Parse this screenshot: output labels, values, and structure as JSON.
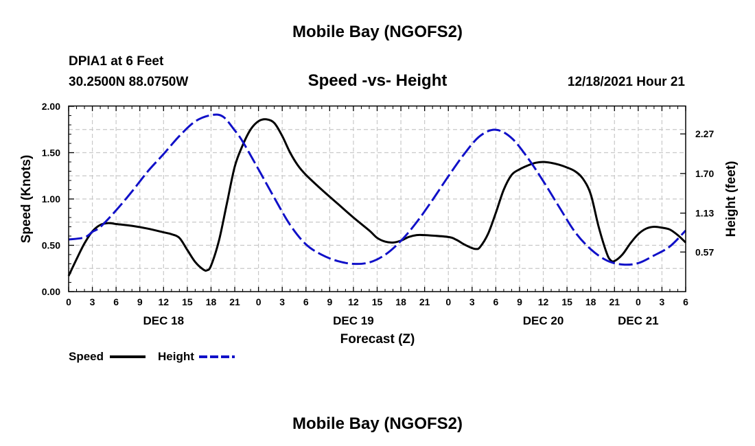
{
  "chart_data": {
    "type": "line",
    "title": "Mobile Bay (NGOFS2)",
    "repeated_title": "Mobile Bay (NGOFS2)",
    "station": "DPIA1 at 6 Feet",
    "coordinates": "30.2500N  88.0750W",
    "subtitle": "Speed -vs- Height",
    "timestamp": "12/18/2021 Hour 21",
    "xlabel": "Forecast (Z)",
    "ylabel_left": "Speed (Knots)",
    "ylabel_right": "Height (feet)",
    "x_unit": "hours from DEC 18 00Z",
    "xlim": [
      0,
      78
    ],
    "ylim_left": [
      0,
      2
    ],
    "ylim_right": [
      0.0,
      2.6667
    ],
    "grid": true,
    "x_tick_values": [
      0,
      3,
      6,
      9,
      12,
      15,
      18,
      21,
      24,
      27,
      30,
      33,
      36,
      39,
      42,
      45,
      48,
      51,
      54,
      57,
      60,
      63,
      66,
      69,
      72,
      75,
      78
    ],
    "x_tick_labels": [
      "0",
      "3",
      "6",
      "9",
      "12",
      "15",
      "18",
      "21",
      "0",
      "3",
      "6",
      "9",
      "12",
      "15",
      "18",
      "21",
      "0",
      "3",
      "6",
      "9",
      "12",
      "15",
      "18",
      "21",
      "0",
      "3",
      "6"
    ],
    "day_labels": [
      {
        "label": "DEC 18",
        "x": 12
      },
      {
        "label": "DEC 19",
        "x": 36
      },
      {
        "label": "DEC 20",
        "x": 60
      },
      {
        "label": "DEC 21",
        "x": 72
      }
    ],
    "y_left_ticks": [
      {
        "value": 0.0,
        "label": "0.00"
      },
      {
        "value": 0.5,
        "label": "0.50"
      },
      {
        "value": 1.0,
        "label": "1.00"
      },
      {
        "value": 1.5,
        "label": "1.50"
      },
      {
        "value": 2.0,
        "label": "2.00"
      }
    ],
    "y_right_ticks": [
      {
        "value": 0.57,
        "label": "0.57"
      },
      {
        "value": 1.13,
        "label": "1.13"
      },
      {
        "value": 1.7,
        "label": "1.70"
      },
      {
        "value": 2.27,
        "label": "2.27"
      }
    ],
    "series": [
      {
        "name": "Speed",
        "axis": "left",
        "color": "#000000",
        "style": "solid",
        "points": [
          [
            0,
            0.17
          ],
          [
            1,
            0.35
          ],
          [
            2,
            0.52
          ],
          [
            3,
            0.65
          ],
          [
            4,
            0.72
          ],
          [
            5,
            0.74
          ],
          [
            6,
            0.73
          ],
          [
            8,
            0.71
          ],
          [
            10,
            0.68
          ],
          [
            12,
            0.64
          ],
          [
            13,
            0.62
          ],
          [
            14,
            0.58
          ],
          [
            15,
            0.45
          ],
          [
            16,
            0.32
          ],
          [
            17,
            0.24
          ],
          [
            17.5,
            0.23
          ],
          [
            18,
            0.28
          ],
          [
            19,
            0.55
          ],
          [
            20,
            0.95
          ],
          [
            21,
            1.35
          ],
          [
            22,
            1.58
          ],
          [
            23,
            1.75
          ],
          [
            24,
            1.84
          ],
          [
            25,
            1.86
          ],
          [
            26,
            1.82
          ],
          [
            27,
            1.68
          ],
          [
            28,
            1.5
          ],
          [
            29,
            1.36
          ],
          [
            30,
            1.26
          ],
          [
            32,
            1.1
          ],
          [
            34,
            0.95
          ],
          [
            36,
            0.8
          ],
          [
            38,
            0.66
          ],
          [
            39,
            0.58
          ],
          [
            40,
            0.54
          ],
          [
            41,
            0.53
          ],
          [
            42,
            0.55
          ],
          [
            43,
            0.59
          ],
          [
            44,
            0.61
          ],
          [
            45,
            0.61
          ],
          [
            48,
            0.59
          ],
          [
            49,
            0.56
          ],
          [
            50,
            0.51
          ],
          [
            51,
            0.47
          ],
          [
            51.5,
            0.46
          ],
          [
            52,
            0.48
          ],
          [
            53,
            0.62
          ],
          [
            54,
            0.85
          ],
          [
            55,
            1.1
          ],
          [
            56,
            1.26
          ],
          [
            57,
            1.32
          ],
          [
            58,
            1.36
          ],
          [
            59,
            1.39
          ],
          [
            60,
            1.4
          ],
          [
            61,
            1.39
          ],
          [
            62,
            1.37
          ],
          [
            63,
            1.34
          ],
          [
            64,
            1.3
          ],
          [
            65,
            1.22
          ],
          [
            66,
            1.05
          ],
          [
            67,
            0.7
          ],
          [
            68,
            0.42
          ],
          [
            68.5,
            0.34
          ],
          [
            69,
            0.33
          ],
          [
            70,
            0.4
          ],
          [
            71,
            0.52
          ],
          [
            72,
            0.62
          ],
          [
            73,
            0.68
          ],
          [
            74,
            0.7
          ],
          [
            75,
            0.69
          ],
          [
            76,
            0.67
          ],
          [
            77,
            0.61
          ],
          [
            78,
            0.53
          ]
        ]
      },
      {
        "name": "Height",
        "axis": "right",
        "color": "#1010c8",
        "style": "dashed",
        "points": [
          [
            0,
            0.75
          ],
          [
            2,
            0.78
          ],
          [
            3,
            0.86
          ],
          [
            4,
            0.93
          ],
          [
            6,
            1.17
          ],
          [
            8,
            1.44
          ],
          [
            10,
            1.73
          ],
          [
            12,
            1.98
          ],
          [
            14,
            2.24
          ],
          [
            16,
            2.45
          ],
          [
            18,
            2.54
          ],
          [
            19.5,
            2.52
          ],
          [
            21,
            2.32
          ],
          [
            22,
            2.16
          ],
          [
            24,
            1.76
          ],
          [
            26,
            1.35
          ],
          [
            28,
            0.96
          ],
          [
            30,
            0.68
          ],
          [
            32,
            0.53
          ],
          [
            34,
            0.44
          ],
          [
            36,
            0.4
          ],
          [
            38,
            0.42
          ],
          [
            40,
            0.53
          ],
          [
            42,
            0.73
          ],
          [
            44,
            1.0
          ],
          [
            46,
            1.32
          ],
          [
            48,
            1.66
          ],
          [
            50,
            1.98
          ],
          [
            52,
            2.24
          ],
          [
            54,
            2.33
          ],
          [
            56,
            2.21
          ],
          [
            58,
            1.93
          ],
          [
            60,
            1.59
          ],
          [
            62,
            1.22
          ],
          [
            64,
            0.86
          ],
          [
            66,
            0.61
          ],
          [
            68,
            0.45
          ],
          [
            70,
            0.39
          ],
          [
            72,
            0.41
          ],
          [
            74,
            0.52
          ],
          [
            76,
            0.65
          ],
          [
            78,
            0.88
          ]
        ]
      }
    ],
    "legend": [
      {
        "label": "Speed",
        "color": "#000000",
        "style": "solid"
      },
      {
        "label": "Height",
        "color": "#1010c8",
        "style": "dashed"
      }
    ]
  }
}
